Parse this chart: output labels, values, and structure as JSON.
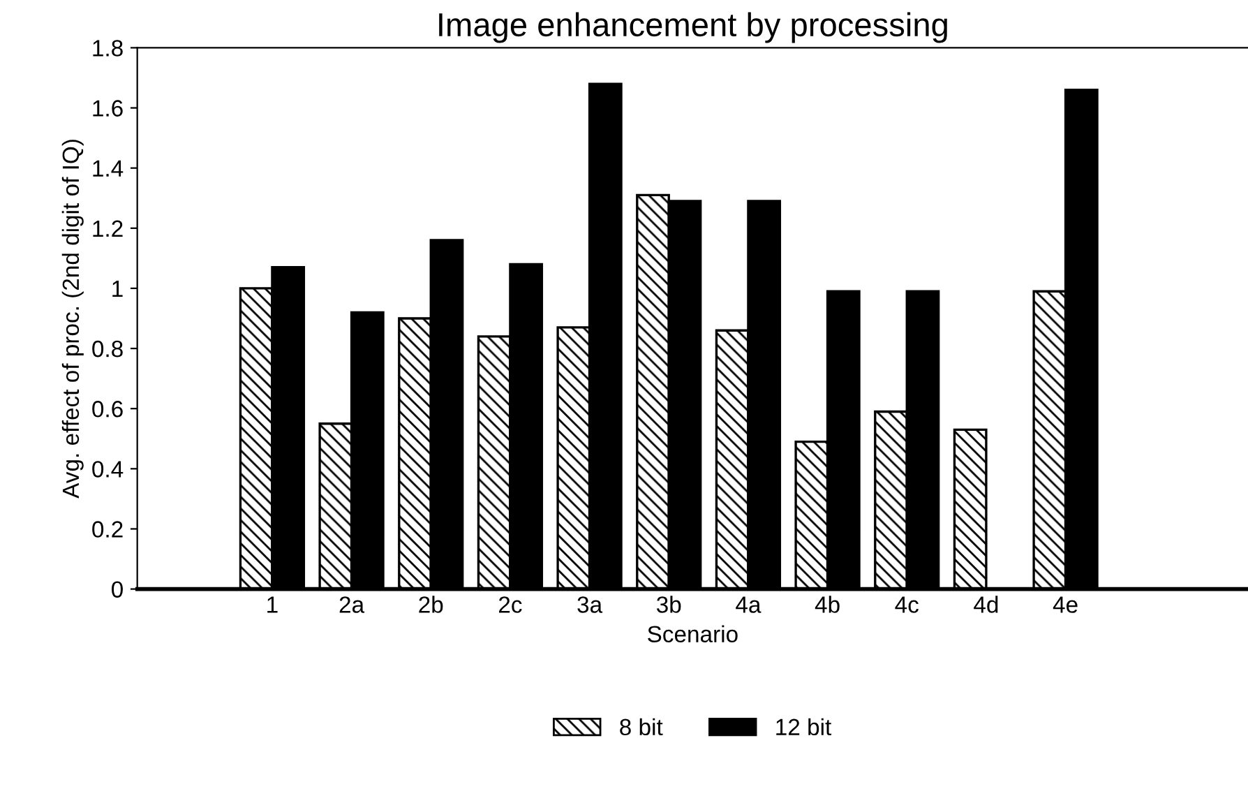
{
  "chart_data": {
    "type": "bar",
    "title": "Image enhancement by processing",
    "xlabel": "Scenario",
    "ylabel": "Avg. effect of proc. (2nd digit of IQ)",
    "categories": [
      null,
      "1",
      "2a",
      "2b",
      "2c",
      "3a",
      "3b",
      "4a",
      "4b",
      "4c",
      "4d",
      "4e",
      null,
      null
    ],
    "series": [
      {
        "name": "8 bit",
        "color": "#000000",
        "values": [
          null,
          1.0,
          0.55,
          0.9,
          0.84,
          0.87,
          1.31,
          0.86,
          0.49,
          0.59,
          0.53,
          0.99,
          null,
          null
        ]
      },
      {
        "name": "12 bit",
        "color": "#000000",
        "values": [
          null,
          1.07,
          0.92,
          1.16,
          1.08,
          1.68,
          1.29,
          1.29,
          0.99,
          0.99,
          null,
          1.66,
          null,
          null
        ]
      }
    ],
    "ylim": [
      0,
      1.8
    ],
    "yticks": [
      0,
      0.2,
      0.4,
      0.6,
      0.8,
      1,
      1.2,
      1.4,
      1.6,
      1.8
    ],
    "grid": false,
    "legend": "bottom"
  }
}
